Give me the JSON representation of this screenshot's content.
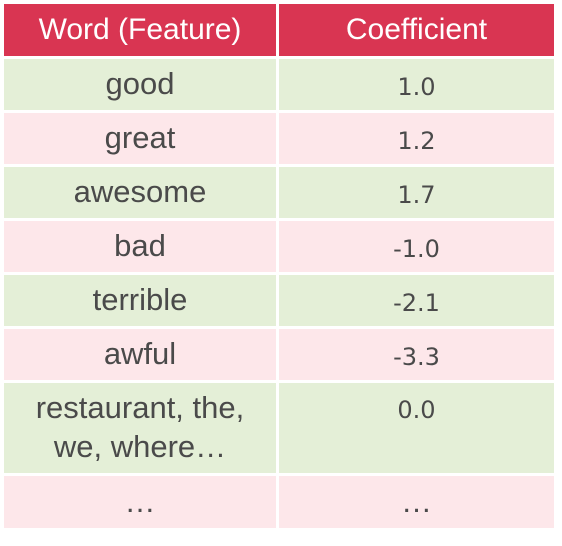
{
  "table": {
    "headers": [
      "Word (Feature)",
      "Coefficient"
    ],
    "rows": [
      {
        "word": "good",
        "coefficient": "1.0"
      },
      {
        "word": "great",
        "coefficient": "1.2"
      },
      {
        "word": "awesome",
        "coefficient": "1.7"
      },
      {
        "word": "bad",
        "coefficient": "-1.0"
      },
      {
        "word": "terrible",
        "coefficient": "-2.1"
      },
      {
        "word": "awful",
        "coefficient": "-3.3"
      },
      {
        "word": "restaurant, the,\nwe, where…",
        "word_line1": "restaurant, the,",
        "word_line2": "we, where…",
        "coefficient": "0.0"
      },
      {
        "word": "…",
        "coefficient": "…"
      }
    ]
  },
  "colors": {
    "header_bg": "#d93552",
    "row_green": "#e4efd7",
    "row_pink": "#fde7ea"
  }
}
